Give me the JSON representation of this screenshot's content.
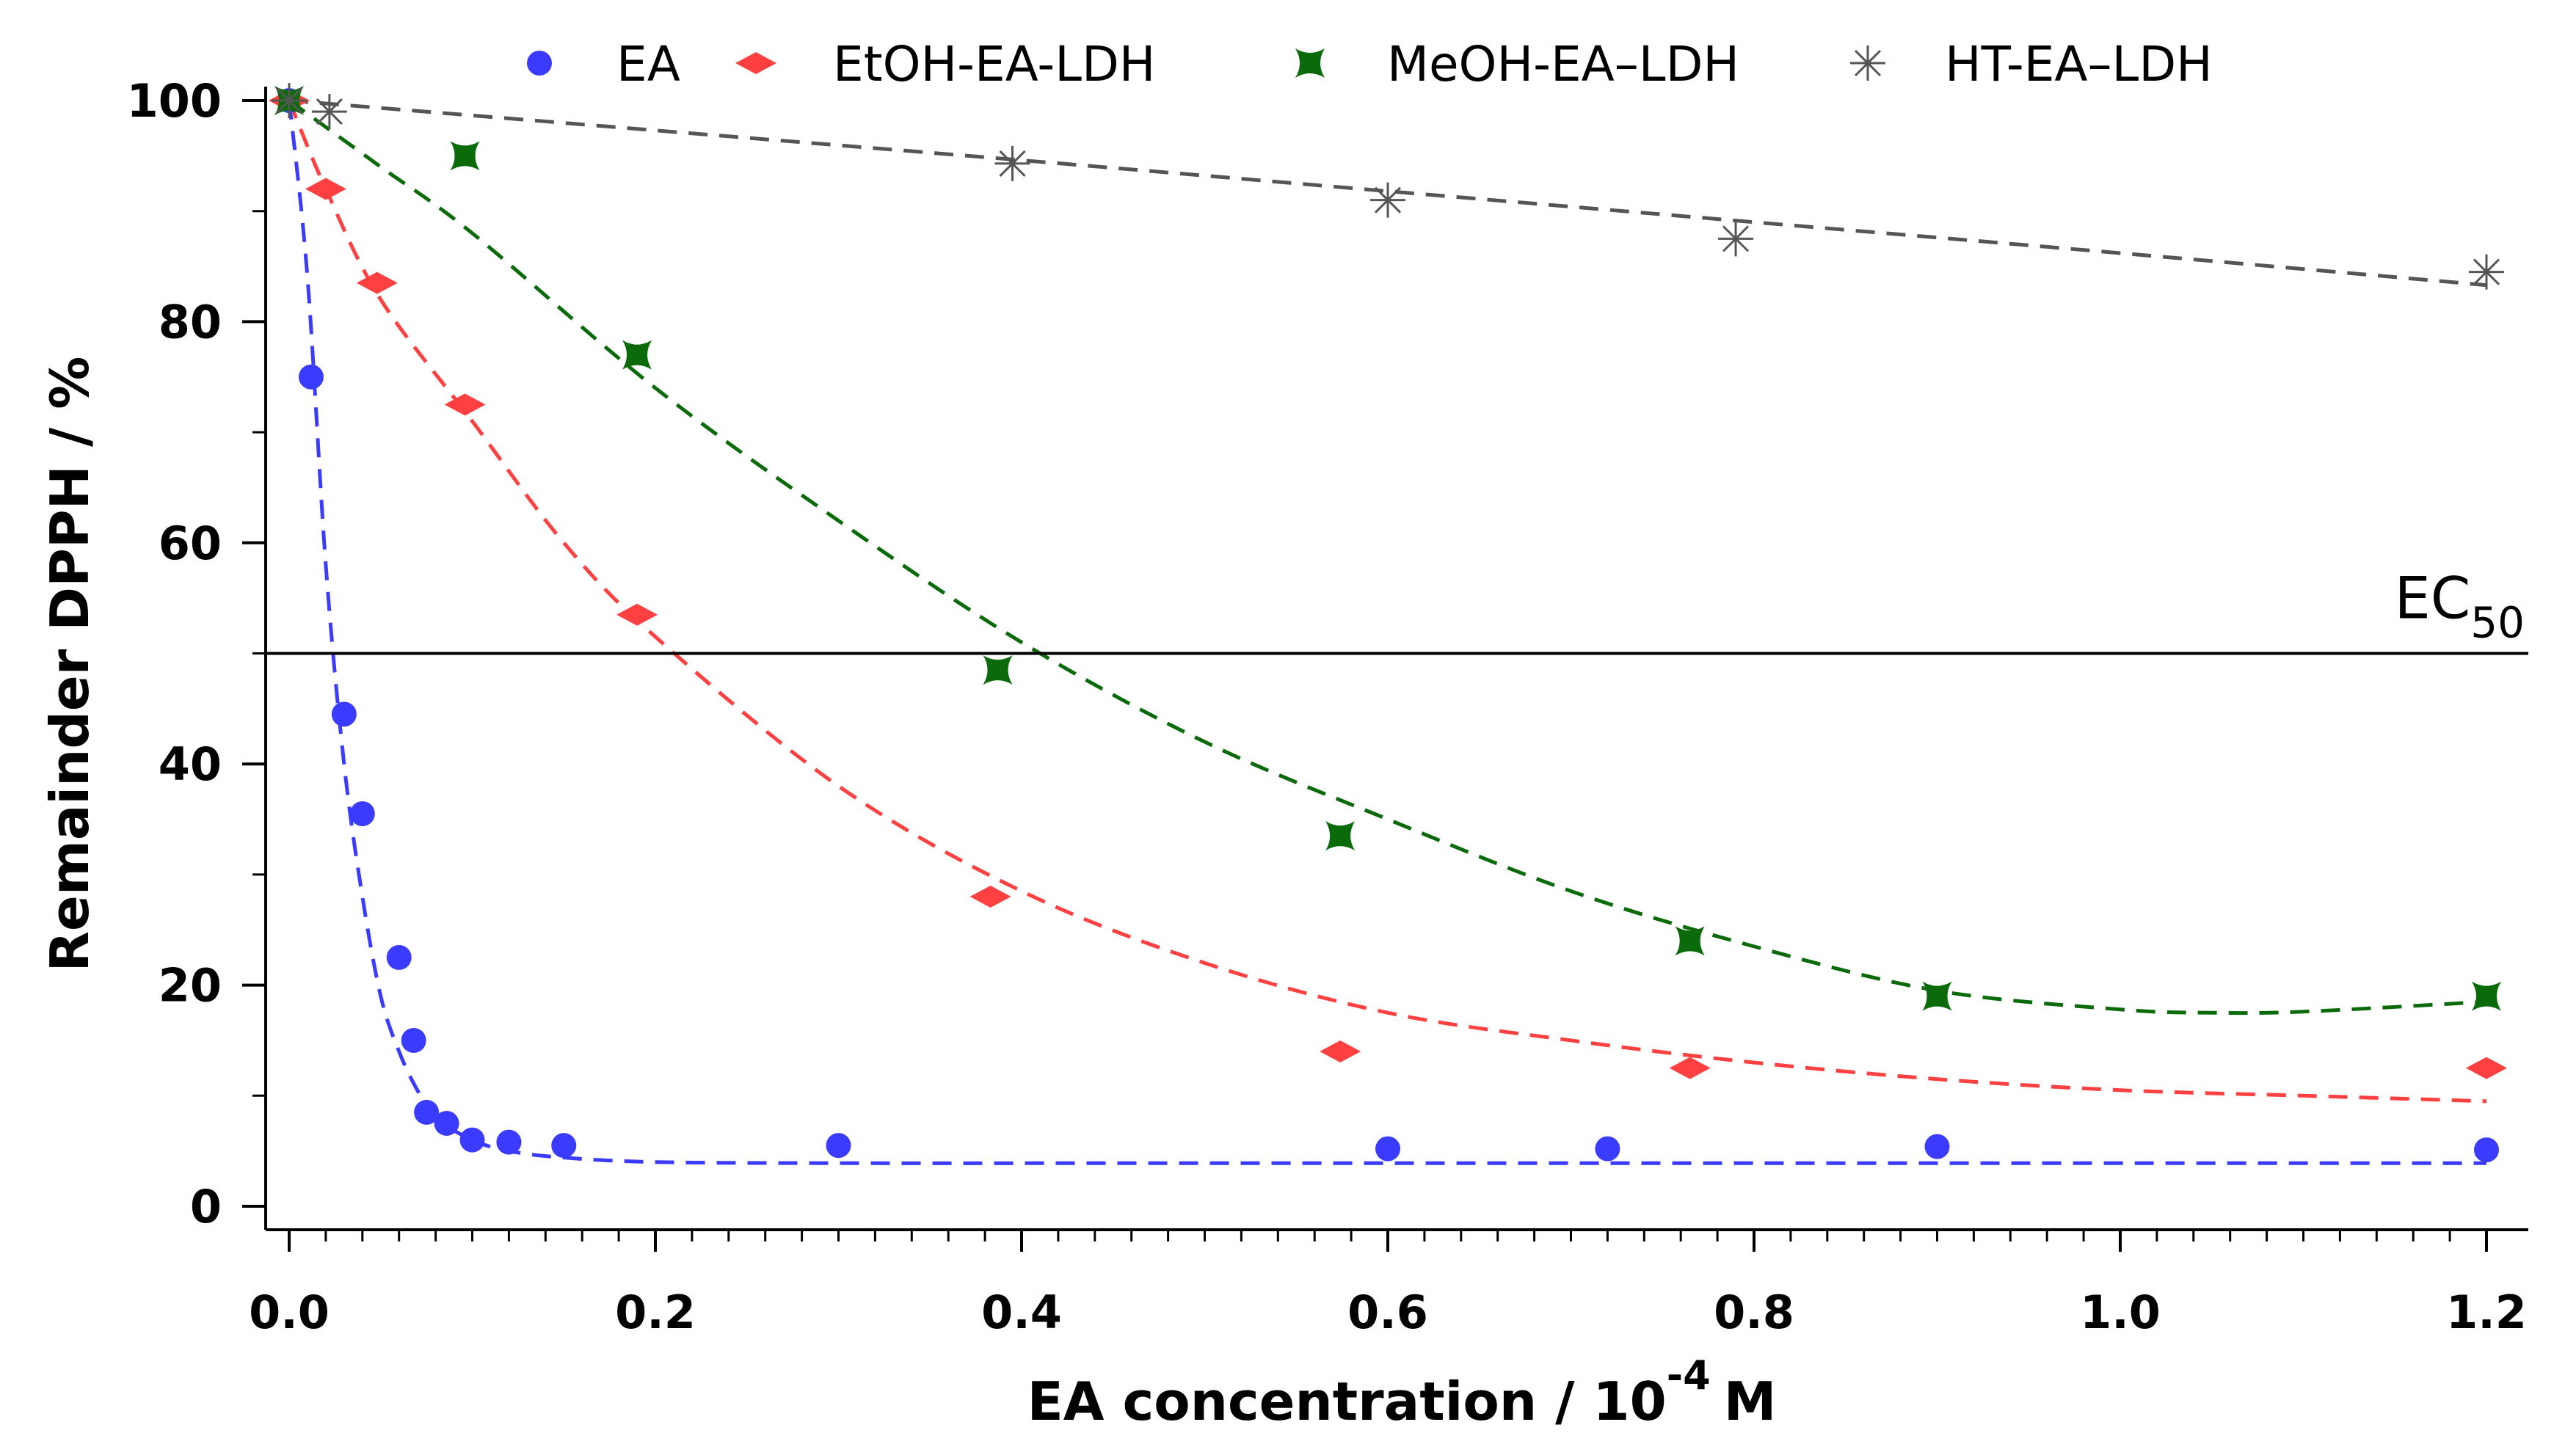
{
  "chart_data": {
    "type": "scatter",
    "xlabel": "EA concentration / 10",
    "xlabel_exponent": "-4",
    "xlabel_unit": "M",
    "ylabel": "Remainder DPPH / %",
    "xlim": [
      -0.015,
      1.215
    ],
    "ylim": [
      -2,
      102
    ],
    "x_ticks": [
      0.0,
      0.2,
      0.4,
      0.6,
      0.8,
      1.0,
      1.2
    ],
    "x_tick_labels": [
      "0.0",
      "0.2",
      "0.4",
      "0.6",
      "0.8",
      "1.0",
      "1.2"
    ],
    "y_ticks": [
      0,
      20,
      40,
      60,
      80,
      100
    ],
    "y_tick_labels": [
      "0",
      "20",
      "40",
      "60",
      "80",
      "100"
    ],
    "legend_position": "top",
    "reference_line": {
      "y": 50,
      "label_main": "EC",
      "label_sub": "50"
    },
    "series": [
      {
        "name": "EA",
        "color": "#3b3bff",
        "marker": "circle",
        "x": [
          0.0,
          0.012,
          0.03,
          0.04,
          0.06,
          0.068,
          0.075,
          0.086,
          0.1,
          0.12,
          0.15,
          0.3,
          0.6,
          0.72,
          0.9,
          1.2
        ],
        "y": [
          100,
          75,
          44.5,
          35.5,
          22.5,
          15,
          8.5,
          7.5,
          6,
          5.8,
          5.5,
          5.5,
          5.2,
          5.2,
          5.4,
          5.1
        ],
        "fit_x": [
          0.0,
          0.01,
          0.02,
          0.03,
          0.04,
          0.05,
          0.06,
          0.07,
          0.08,
          0.1,
          0.12,
          0.15,
          0.2,
          0.3,
          0.5,
          0.8,
          1.2
        ],
        "fit_y": [
          100,
          84,
          58,
          40,
          28,
          19,
          14,
          10.5,
          8,
          6,
          5,
          4.4,
          4,
          3.9,
          3.9,
          3.9,
          3.9
        ]
      },
      {
        "name": "EtOH-EA-LDH",
        "color": "#ff4040",
        "marker": "diamond",
        "x": [
          0.0,
          0.02,
          0.048,
          0.096,
          0.19,
          0.383,
          0.574,
          0.765,
          1.2
        ],
        "y": [
          100,
          92,
          83.5,
          72.5,
          53.5,
          28,
          14,
          12.5,
          12.5
        ],
        "fit_x": [
          0.0,
          0.02,
          0.05,
          0.1,
          0.15,
          0.2,
          0.3,
          0.4,
          0.5,
          0.6,
          0.7,
          0.8,
          0.9,
          1.0,
          1.1,
          1.2
        ],
        "fit_y": [
          100,
          92,
          82,
          71,
          60,
          51.5,
          38,
          28.5,
          22,
          17.5,
          15,
          13,
          11.5,
          10.5,
          10,
          9.5
        ]
      },
      {
        "name": "MeOH-EA–LDH",
        "color": "#0b6b0b",
        "marker": "star4",
        "x": [
          0.0,
          0.096,
          0.19,
          0.387,
          0.574,
          0.765,
          0.9,
          1.2
        ],
        "y": [
          100,
          95,
          77,
          48.5,
          33.5,
          24,
          19,
          19
        ],
        "fit_x": [
          0.0,
          0.05,
          0.1,
          0.2,
          0.3,
          0.4,
          0.5,
          0.6,
          0.7,
          0.8,
          0.9,
          1.0,
          1.05,
          1.1,
          1.2
        ],
        "fit_y": [
          100,
          94,
          88,
          74,
          62,
          51,
          42,
          35,
          28.5,
          23.5,
          19.5,
          17.8,
          17.5,
          17.6,
          18.5
        ]
      },
      {
        "name": "HT-EA–LDH",
        "color": "#555555",
        "marker": "asterisk",
        "x": [
          0.0,
          0.022,
          0.395,
          0.6,
          0.79,
          1.2
        ],
        "y": [
          100,
          99,
          94.3,
          91,
          87.5,
          84.5
        ],
        "fit_x": [
          0.0,
          0.2,
          0.4,
          0.6,
          0.8,
          1.0,
          1.2
        ],
        "fit_y": [
          100,
          97.3,
          94.6,
          91.8,
          89,
          86.2,
          83.3
        ]
      }
    ]
  }
}
